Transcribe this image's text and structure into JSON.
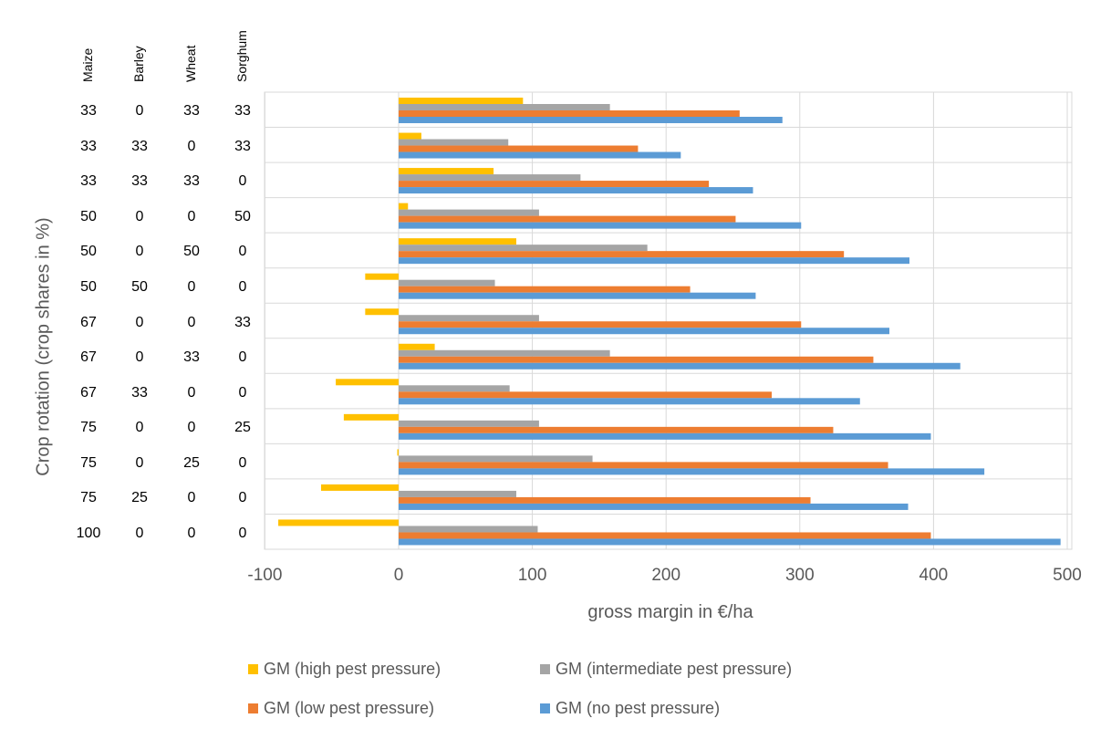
{
  "chart_data": {
    "type": "bar",
    "orientation": "horizontal",
    "xlabel": "gross margin in €/ha",
    "ylabel": "Crop rotation (crop shares in %)",
    "xlim": [
      -100,
      500
    ],
    "xticks": [
      "-100",
      "0",
      "100",
      "200",
      "300",
      "400",
      "500"
    ],
    "grid": true,
    "legend_position": "bottom",
    "crop_headers": [
      "Maize",
      "Barley",
      "Wheat",
      "Sorghum"
    ],
    "categories": [
      [
        "33",
        "0",
        "33",
        "33"
      ],
      [
        "33",
        "33",
        "0",
        "33"
      ],
      [
        "33",
        "33",
        "33",
        "0"
      ],
      [
        "50",
        "0",
        "0",
        "50"
      ],
      [
        "50",
        "0",
        "50",
        "0"
      ],
      [
        "50",
        "50",
        "0",
        "0"
      ],
      [
        "67",
        "0",
        "0",
        "33"
      ],
      [
        "67",
        "0",
        "33",
        "0"
      ],
      [
        "67",
        "33",
        "0",
        "0"
      ],
      [
        "75",
        "0",
        "0",
        "25"
      ],
      [
        "75",
        "0",
        "25",
        "0"
      ],
      [
        "75",
        "25",
        "0",
        "0"
      ],
      [
        "100",
        "0",
        "0",
        "0"
      ]
    ],
    "series": [
      {
        "name": "GM (high pest pressure)",
        "color": "#ffc000",
        "values": [
          93,
          17,
          71,
          7,
          88,
          -25,
          -25,
          27,
          -47,
          -41,
          -1,
          -58,
          -90
        ]
      },
      {
        "name": "GM (intermediate pest pressure)",
        "color": "#a5a5a5",
        "values": [
          158,
          82,
          136,
          105,
          186,
          72,
          105,
          158,
          83,
          105,
          145,
          88,
          104
        ]
      },
      {
        "name": "GM (low pest pressure)",
        "color": "#ed7d31",
        "values": [
          255,
          179,
          232,
          252,
          333,
          218,
          301,
          355,
          279,
          325,
          366,
          308,
          398
        ]
      },
      {
        "name": "GM (no pest pressure)",
        "color": "#5b9bd5",
        "values": [
          287,
          211,
          265,
          301,
          382,
          267,
          367,
          420,
          345,
          398,
          438,
          381,
          495
        ]
      }
    ]
  }
}
